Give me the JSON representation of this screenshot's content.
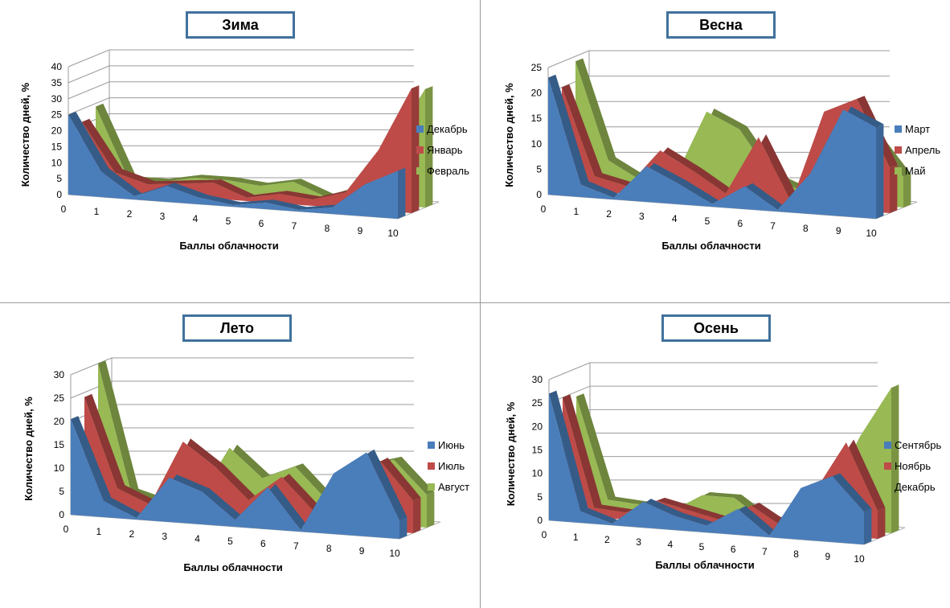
{
  "colors": {
    "series1": "#4a7ebb",
    "series2": "#be4b48",
    "series3": "#98b954",
    "grid": "#9b9b9b"
  },
  "chart_data": [
    {
      "type": "area",
      "title": "Зима",
      "xlabel": "Баллы облачности",
      "ylabel": "Количество дней, %",
      "x": [
        0,
        1,
        2,
        3,
        4,
        5,
        6,
        7,
        8,
        9,
        10
      ],
      "ylim": [
        0,
        40
      ],
      "yticks": [
        0,
        5,
        10,
        15,
        20,
        25,
        30,
        35,
        40
      ],
      "legend": "right",
      "series": [
        {
          "name": "Декабрь",
          "values": [
            25,
            8,
            1,
            5,
            2,
            0.5,
            2,
            0.5,
            2,
            10,
            15
          ]
        },
        {
          "name": "Январь",
          "values": [
            21,
            6,
            3,
            4,
            5,
            1,
            3,
            2,
            5,
            19,
            39
          ]
        },
        {
          "name": "Февраль",
          "values": [
            24,
            2,
            2,
            4,
            4,
            3,
            5,
            1,
            5,
            20,
            37
          ]
        }
      ]
    },
    {
      "type": "area",
      "title": "Весна",
      "xlabel": "Баллы облачности",
      "ylabel": "Количество дней, %",
      "x": [
        0,
        1,
        2,
        3,
        4,
        5,
        6,
        7,
        8,
        9,
        10
      ],
      "ylim": [
        0,
        25
      ],
      "yticks": [
        0,
        5,
        10,
        15,
        20,
        25
      ],
      "legend": "right",
      "series": [
        {
          "name": "Март",
          "values": [
            23,
            2.5,
            0.3,
            7,
            4,
            0.5,
            4.5,
            0.3,
            8,
            21,
            18
          ]
        },
        {
          "name": "Апрель",
          "values": [
            20,
            3,
            1.5,
            9,
            5.5,
            1.5,
            13,
            0.7,
            19,
            22,
            9
          ]
        },
        {
          "name": "Май",
          "values": [
            24,
            5,
            1.5,
            2,
            16,
            13,
            4,
            1.5,
            11,
            14,
            6
          ]
        }
      ]
    },
    {
      "type": "area",
      "title": "Лето",
      "xlabel": "Баллы облачности",
      "ylabel": "Количество дней, %",
      "x": [
        0,
        1,
        2,
        3,
        4,
        5,
        6,
        7,
        8,
        9,
        10
      ],
      "ylim": [
        0,
        30
      ],
      "yticks": [
        0,
        5,
        10,
        15,
        20,
        25,
        30
      ],
      "legend": "right",
      "series": [
        {
          "name": "Июнь",
          "values": [
            20.5,
            3.5,
            0.3,
            9.5,
            7,
            1.5,
            9,
            0.3,
            13,
            18,
            4
          ]
        },
        {
          "name": "Июль",
          "values": [
            24,
            5,
            2,
            16,
            11,
            4.5,
            10,
            3,
            11,
            15,
            7
          ]
        },
        {
          "name": "Август",
          "values": [
            30,
            3,
            1,
            2,
            14,
            8,
            11,
            4,
            12,
            14,
            7
          ]
        }
      ]
    },
    {
      "type": "area",
      "title": "Осень",
      "xlabel": "Баллы облачности",
      "ylabel": "Количество дней, %",
      "x": [
        0,
        1,
        2,
        3,
        4,
        5,
        6,
        7,
        8,
        9,
        10
      ],
      "ylim": [
        0,
        30
      ],
      "yticks": [
        0,
        5,
        10,
        15,
        20,
        25,
        30
      ],
      "legend": "right",
      "series": [
        {
          "name": "Сентябрь",
          "values": [
            27,
            2.5,
            0.3,
            5.5,
            3,
            1.5,
            5.5,
            0.3,
            11,
            14,
            7
          ]
        },
        {
          "name": "Ноябрь",
          "values": [
            25,
            2,
            1.5,
            4.5,
            3,
            1.5,
            5,
            1,
            9,
            20,
            6
          ]
        },
        {
          "name": "Декабрь",
          "values": [
            24,
            2.5,
            2,
            1,
            5,
            5,
            0.5,
            2,
            6,
            20,
            31
          ]
        }
      ]
    }
  ]
}
